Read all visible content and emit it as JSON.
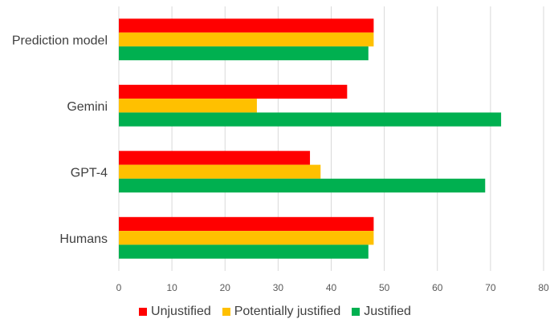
{
  "chart_data": {
    "type": "bar",
    "orientation": "horizontal",
    "categories": [
      "Prediction model",
      "Gemini",
      "GPT-4",
      "Humans"
    ],
    "series": [
      {
        "name": "Unjustified",
        "color": "#ff0000",
        "values": [
          48,
          43,
          36,
          48
        ]
      },
      {
        "name": "Potentially justified",
        "color": "#ffc000",
        "values": [
          48,
          26,
          38,
          48
        ]
      },
      {
        "name": "Justified",
        "color": "#00b050",
        "values": [
          47,
          72,
          69,
          47
        ]
      }
    ],
    "xlim": [
      0,
      80
    ],
    "xticks": [
      0,
      10,
      20,
      30,
      40,
      50,
      60,
      70,
      80
    ],
    "grid": true,
    "legend_position": "bottom"
  }
}
